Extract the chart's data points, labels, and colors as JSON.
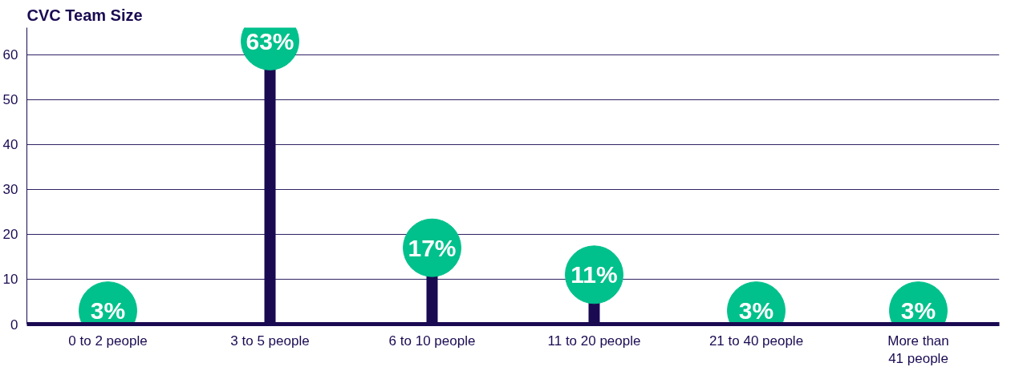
{
  "chart_data": {
    "type": "lollipop",
    "title": "CVC Team Size",
    "categories": [
      "0 to 2 people",
      "3 to 5 people",
      "6 to 10 people",
      "11 to 20 people",
      "21 to 40 people",
      "More than\n41 people"
    ],
    "values": [
      3,
      63,
      17,
      11,
      3,
      3
    ],
    "value_labels": [
      "3%",
      "63%",
      "17%",
      "11%",
      "3%",
      "3%"
    ],
    "color": "#1a0a52",
    "colors": [
      "#00c08b",
      "#00c08b",
      "#00c08b",
      "#00c08b",
      "#00c08b",
      "#00c08b"
    ],
    "ylim": [
      0,
      66
    ],
    "yticks": [
      0,
      10,
      20,
      30,
      40,
      50,
      60
    ],
    "grid": "y"
  }
}
